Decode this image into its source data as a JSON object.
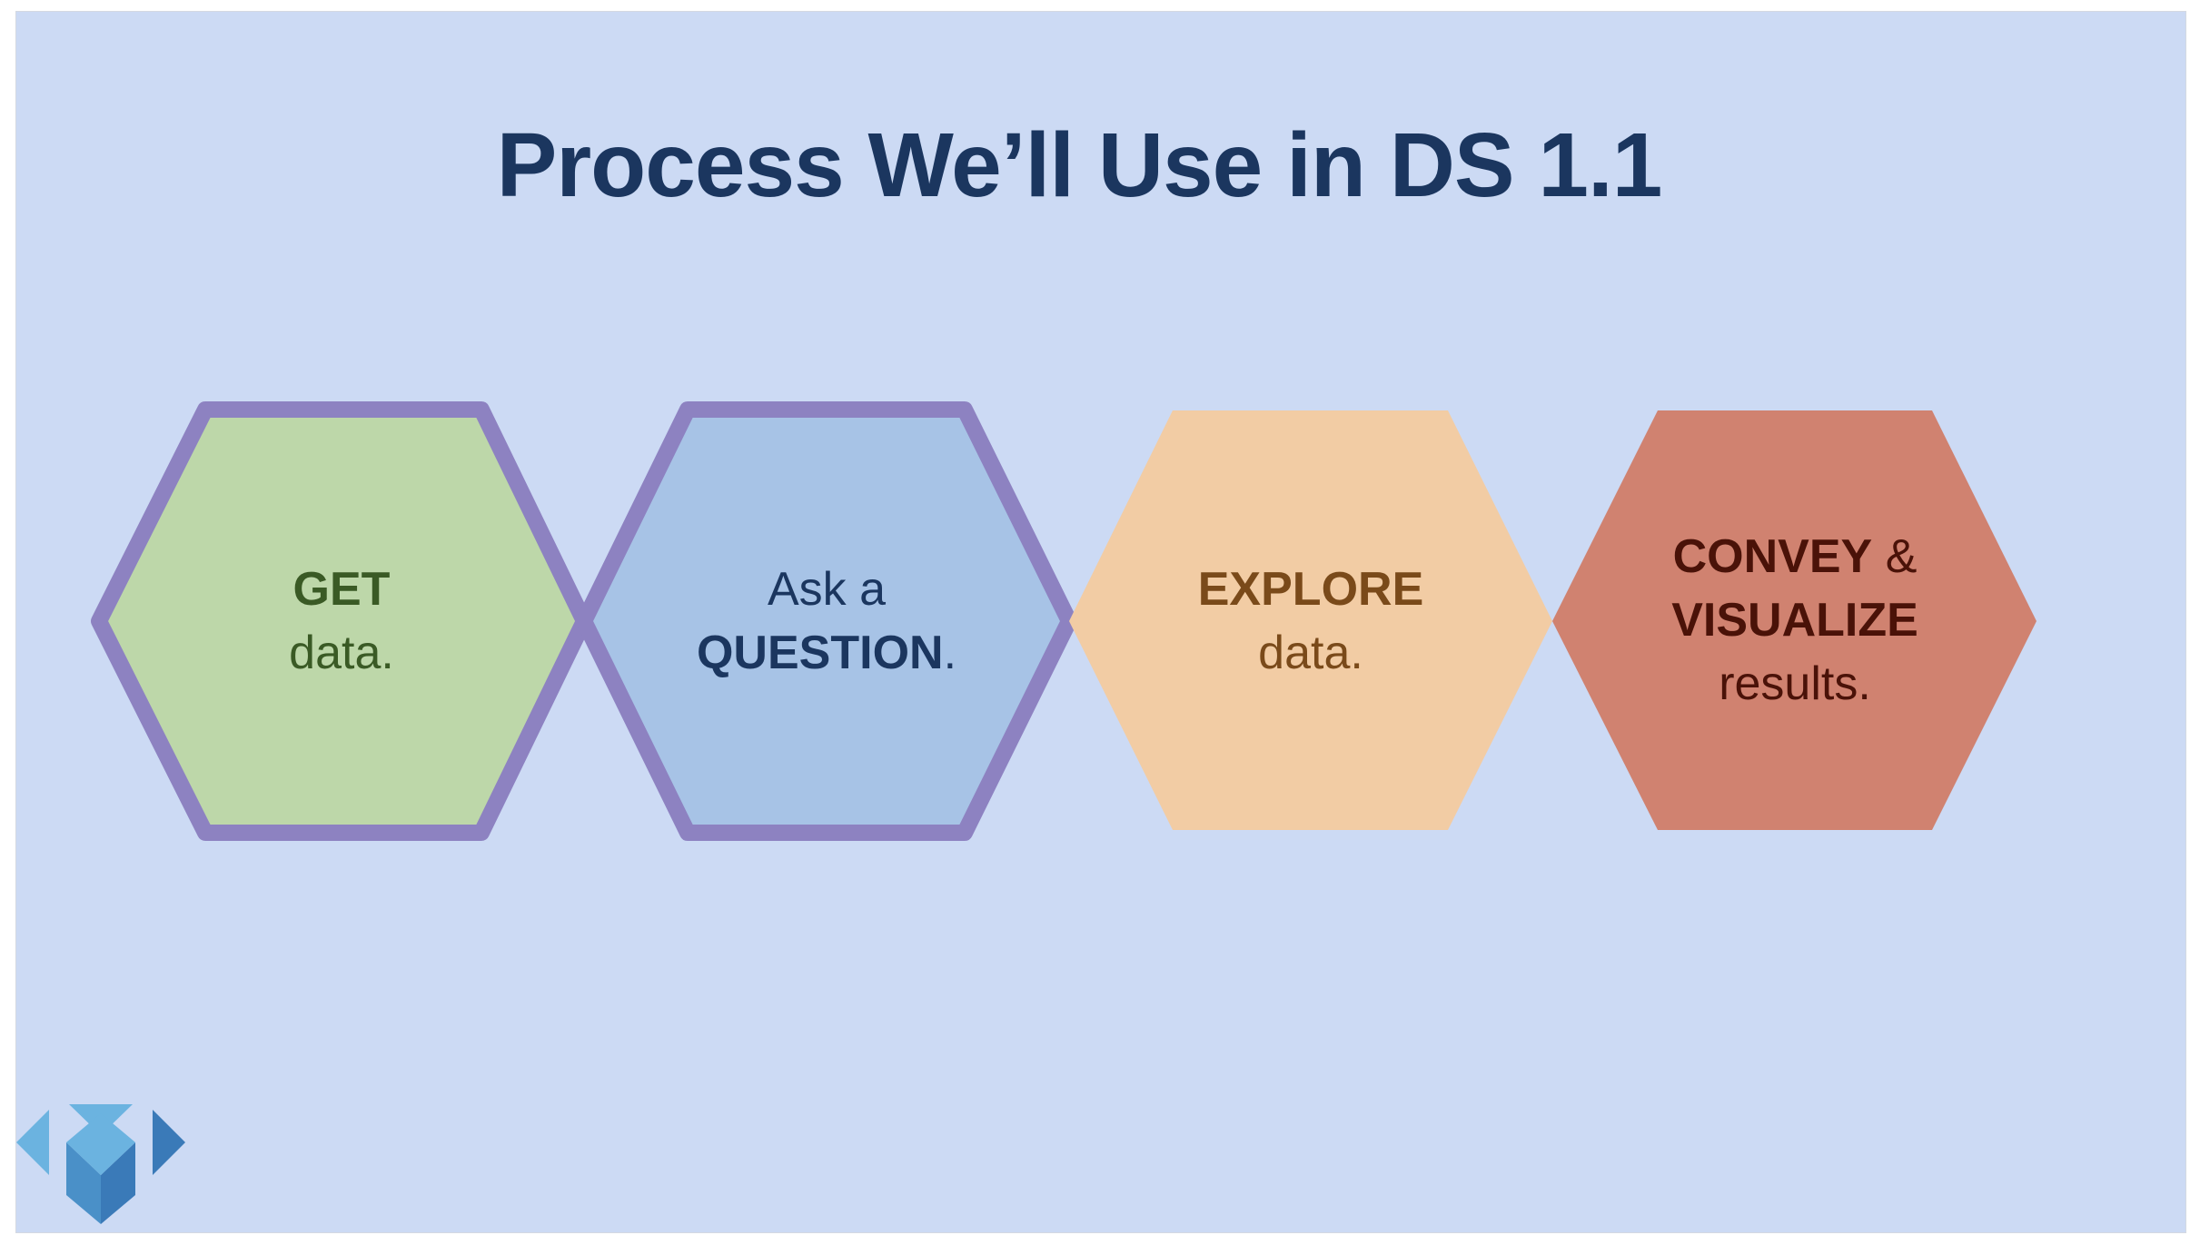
{
  "slide": {
    "title": "Process We’ll Use in DS 1.1",
    "background": "#ccdaf4",
    "title_color": "#1b365f"
  },
  "steps": [
    {
      "bold": "GET",
      "text": "data.",
      "fill": "#bdd7a9",
      "outline": "#8d82c1",
      "text_color": "#3a5a25"
    },
    {
      "text_before": "Ask a",
      "bold": "QUESTION",
      "text_after": ".",
      "fill": "#a7c3e6",
      "outline": "#8d82c1",
      "text_color": "#1b365f"
    },
    {
      "bold": "EXPLORE",
      "text": "data.",
      "fill": "#f2cca4",
      "outline": "",
      "text_color": "#7a4a1a"
    },
    {
      "bold": "CONVEY",
      "amp": "&",
      "bold2": "VISUALIZE",
      "text": "results.",
      "fill": "#d08270",
      "outline": "",
      "text_color": "#4a1208"
    }
  ],
  "logo": {
    "icon": "makeschool-logo-icon",
    "colors": [
      "#6bb3e0",
      "#4a90c8",
      "#3a7ab8"
    ]
  }
}
